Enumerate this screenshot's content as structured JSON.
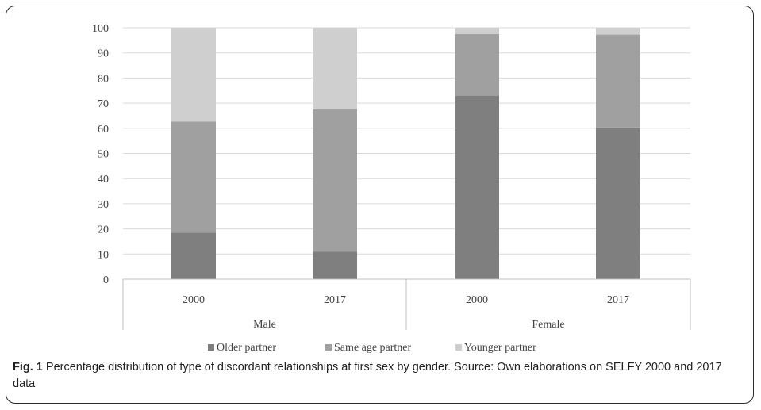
{
  "chart_data": {
    "type": "bar",
    "stacked": true,
    "groups": [
      {
        "label": "Male",
        "categories": [
          "2000",
          "2017"
        ]
      },
      {
        "label": "Female",
        "categories": [
          "2000",
          "2017"
        ]
      }
    ],
    "categories": [
      "2000",
      "2017",
      "2000",
      "2017"
    ],
    "series": [
      {
        "name": "Older partner",
        "color": "#7f7f7f",
        "values": [
          18.5,
          11,
          73,
          60.3
        ]
      },
      {
        "name": "Same age partner",
        "color": "#a0a0a0",
        "values": [
          44.2,
          56.5,
          24.5,
          37
        ]
      },
      {
        "name": "Younger partner",
        "color": "#cfcfcf",
        "values": [
          37.3,
          32.5,
          2.5,
          2.7
        ]
      }
    ],
    "ylim": [
      0,
      100
    ],
    "yticks": [
      "0",
      "10",
      "20",
      "30",
      "40",
      "50",
      "60",
      "70",
      "80",
      "90",
      "100"
    ],
    "grid": true,
    "legend_position": "bottom"
  },
  "caption": {
    "label": "Fig. 1",
    "text": " Percentage distribution of type of discordant relationships at first sex by gender. Source: Own elaborations on SELFY 2000 and 2017 data"
  }
}
